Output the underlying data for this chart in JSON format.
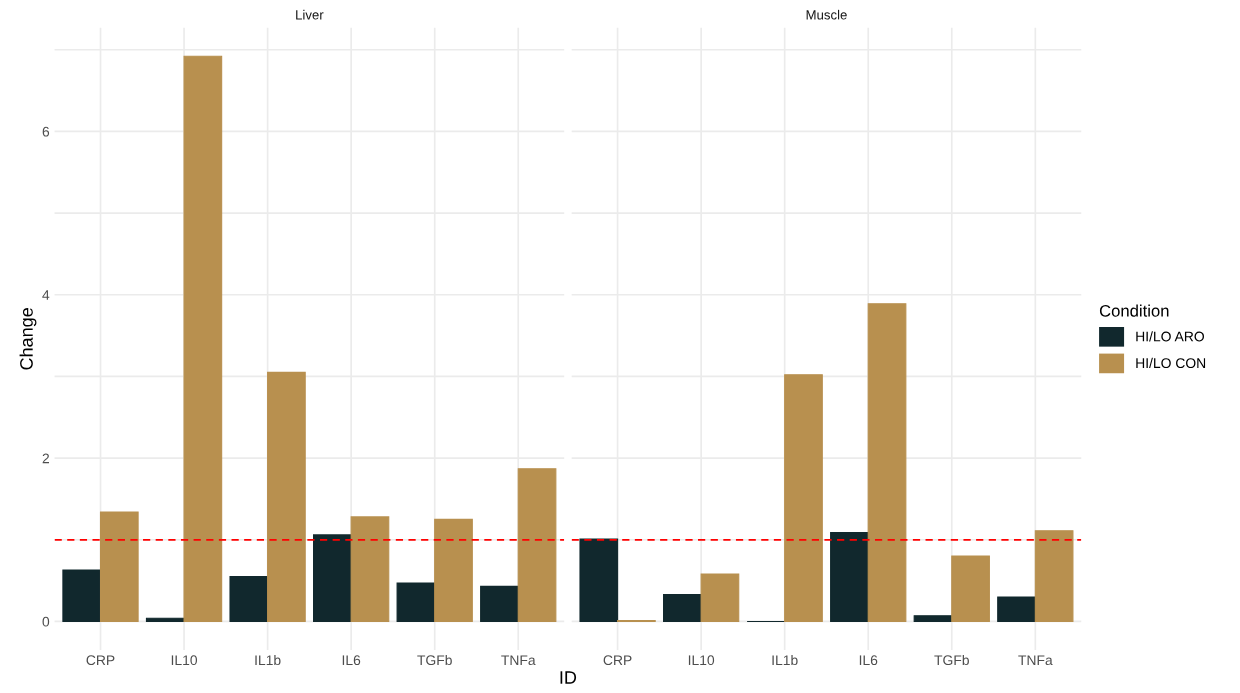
{
  "chart_data": [
    {
      "type": "bar",
      "title": "Liver",
      "legend_title": "Condition",
      "legend": "right",
      "xlabel": "ID",
      "ylabel": "Change",
      "categories": [
        "CRP",
        "IL10",
        "IL1b",
        "IL6",
        "TGFb",
        "TNFa"
      ],
      "series": [
        {
          "name": "HI/LO ARO",
          "color": "#11282d",
          "values": [
            0.63,
            0.04,
            0.55,
            1.06,
            0.47,
            0.43
          ]
        },
        {
          "name": "HI/LO CON",
          "color": "#b8904f",
          "values": [
            1.34,
            6.92,
            3.05,
            1.28,
            1.25,
            1.87
          ]
        }
      ],
      "ylim": [
        -0.35,
        7.27
      ],
      "yticks": [
        0,
        {
          "value": 1,
          "label": null
        },
        2,
        {
          "value": 3,
          "label": null
        },
        4,
        {
          "value": 5,
          "label": null
        },
        6,
        {
          "value": 7,
          "label": null
        }
      ],
      "ref_lines": [
        {
          "axis": "y",
          "value": 1,
          "color": "#ff0000",
          "line_style": "dashed"
        }
      ],
      "grid": true
    },
    {
      "type": "bar",
      "title": "Muscle",
      "tick_labels": "x",
      "categories": [
        "CRP",
        "IL10",
        "IL1b",
        "IL6",
        "TGFb",
        "TNFa"
      ],
      "series": [
        {
          "color": "#11282d",
          "values": [
            1.01,
            0.33,
            0.0,
            1.09,
            0.07,
            0.3
          ]
        },
        {
          "color": "#b8904f",
          "values": [
            0.01,
            0.58,
            3.02,
            3.89,
            0.8,
            1.11
          ]
        }
      ],
      "ylim": [
        -0.35,
        7.27
      ],
      "yticks": [
        0,
        {
          "value": 1,
          "label": null
        },
        2,
        {
          "value": 3,
          "label": null
        },
        4,
        {
          "value": 5,
          "label": null
        },
        6,
        {
          "value": 7,
          "label": null
        }
      ],
      "ref_lines": [
        {
          "axis": "y",
          "value": 1,
          "color": "#ff0000",
          "line_style": "dashed"
        }
      ],
      "grid": true
    }
  ]
}
